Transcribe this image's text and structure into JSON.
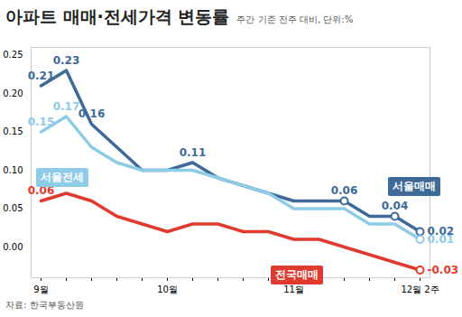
{
  "chart_data": {
    "type": "line",
    "title": "아파트 매매·전세가격 변동률",
    "subtitle": "주간 기준 전주 대비, 단위:%",
    "source": "자료: 한국부동산원",
    "categories": [
      "9월",
      null,
      null,
      null,
      null,
      "10월",
      null,
      null,
      null,
      null,
      "11월",
      null,
      null,
      null,
      null,
      "12월 2주"
    ],
    "series": [
      {
        "name": "서울매매",
        "color": "#3d6a99",
        "values": [
          0.21,
          0.23,
          0.16,
          0.13,
          0.1,
          0.1,
          0.11,
          0.09,
          0.08,
          0.07,
          0.06,
          0.06,
          0.06,
          0.04,
          0.04,
          0.02
        ],
        "value_labels": [
          "0.21",
          "0.23",
          "0.16",
          null,
          null,
          null,
          "0.11",
          null,
          null,
          null,
          null,
          null,
          "0.06",
          null,
          "0.04",
          "0.02"
        ]
      },
      {
        "name": "서울전세",
        "color": "#8ecbe6",
        "values": [
          0.15,
          0.17,
          0.13,
          0.11,
          0.1,
          0.1,
          0.1,
          0.09,
          0.08,
          0.07,
          0.05,
          0.05,
          0.05,
          0.03,
          0.03,
          0.01
        ],
        "value_labels": [
          "0.15",
          "0.17",
          null,
          null,
          null,
          null,
          null,
          null,
          null,
          null,
          null,
          null,
          null,
          null,
          null,
          "0.01"
        ]
      },
      {
        "name": "전국매매",
        "color": "#e03a2e",
        "values": [
          0.06,
          0.07,
          0.06,
          0.04,
          0.03,
          0.02,
          0.03,
          0.03,
          0.02,
          0.02,
          0.01,
          0.01,
          0.0,
          -0.01,
          -0.02,
          -0.03
        ],
        "value_labels": [
          "0.06",
          null,
          null,
          null,
          null,
          null,
          null,
          null,
          null,
          null,
          null,
          null,
          null,
          null,
          null,
          "-0.03"
        ]
      }
    ],
    "ylim": [
      -0.04,
      0.26
    ],
    "yticks": [
      {
        "value": 0,
        "label": "0.00"
      },
      0.05,
      {
        "value": 0.1,
        "label": "0.10"
      },
      0.15,
      {
        "value": 0.2,
        "label": "0.20"
      },
      0.25
    ],
    "grid": false,
    "data_labels": true
  }
}
